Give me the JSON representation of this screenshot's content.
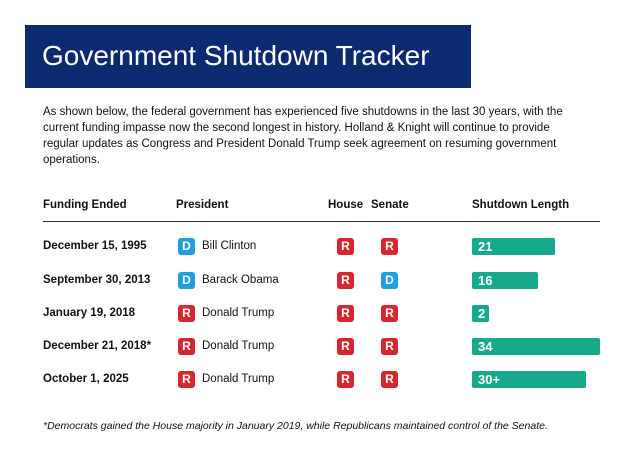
{
  "header": {
    "title": "Government Shutdown Tracker"
  },
  "intro": "As shown below, the federal government has experienced five shutdowns in the last 30 years, with the current funding impasse now the second longest in history. Holland & Knight will continue to provide regular updates as Congress and President Donald Trump seek agreement on resuming government operations.",
  "table": {
    "columns": [
      "Funding Ended",
      "President",
      "House",
      "Senate",
      "Shutdown Length"
    ],
    "rows": [
      {
        "funding_ended": "December 15, 1995",
        "president_party": "D",
        "president": "Bill Clinton",
        "house": "R",
        "senate": "R",
        "length": 21
      },
      {
        "funding_ended": "September 30, 2013",
        "president_party": "D",
        "president": "Barack Obama",
        "house": "R",
        "senate": "D",
        "length": 16
      },
      {
        "funding_ended": "January 19, 2018",
        "president_party": "R",
        "president": "Donald Trump",
        "house": "R",
        "senate": "R",
        "length": 2
      },
      {
        "funding_ended": "December 21, 2018*",
        "president_party": "R",
        "president": "Donald Trump",
        "house": "R",
        "senate": "R",
        "length": 34
      },
      {
        "funding_ended": "October 1, 2025",
        "president_party": "R",
        "president": "Donald Trump",
        "house": "R",
        "senate": "R",
        "length": 30,
        "length_label": "30+"
      }
    ]
  },
  "footnote": "*Democrats gained the House majority in January 2019, while Republicans maintained control of the Senate."
}
